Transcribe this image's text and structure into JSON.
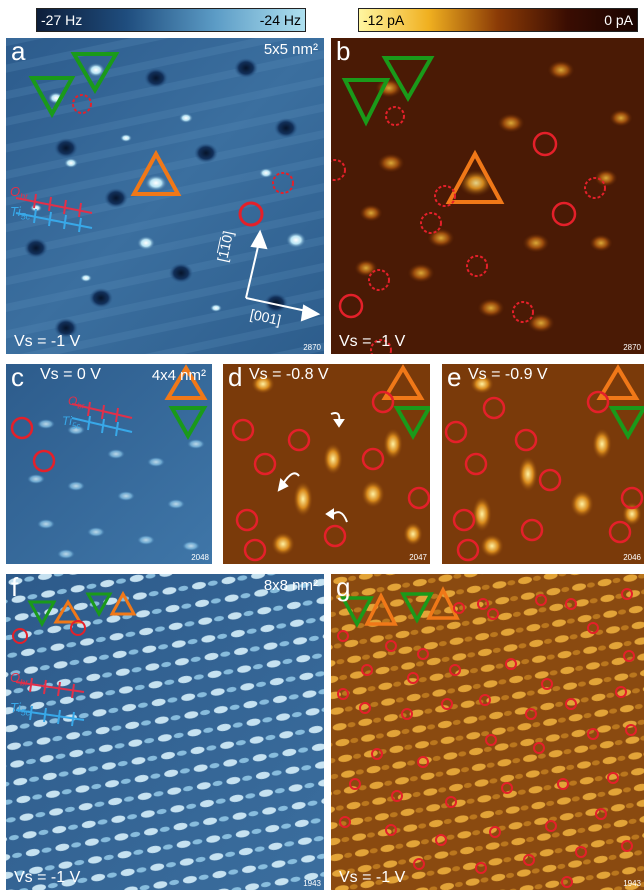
{
  "colorbars": {
    "frequency": {
      "min": "-27 Hz",
      "max": "-24 Hz"
    },
    "current": {
      "min": "-12 pA",
      "max": "0 pA"
    }
  },
  "panels": {
    "a": {
      "label": "a",
      "scale": "5x5 nm²",
      "voltage": "Vs = -1 V",
      "id": "2870",
      "lattice": {
        "o_label": "O",
        "o_sub": "br",
        "ti_label": "Ti",
        "ti_sub": "5c"
      },
      "directions": {
        "d1": "[1̅1̅0]",
        "d2": "[001]"
      }
    },
    "b": {
      "label": "b",
      "voltage": "Vs = -1 V",
      "id": "2870"
    },
    "c": {
      "label": "c",
      "scale": "4x4 nm²",
      "voltage": "Vs = 0 V",
      "id": "2048",
      "lattice": {
        "o_label": "O",
        "o_sub": "br",
        "ti_label": "Ti",
        "ti_sub": "5c"
      }
    },
    "d": {
      "label": "d",
      "voltage": "Vs = -0.8 V",
      "id": "2047"
    },
    "e": {
      "label": "e",
      "voltage": "Vs = -0.9 V",
      "id": "2046"
    },
    "f": {
      "label": "f",
      "scale": "8x8 nm²",
      "voltage": "Vs = -1 V",
      "id": "1943",
      "lattice": {
        "o_label": "O",
        "o_sub": "br",
        "ti_label": "Ti",
        "ti_sub": "5c"
      }
    },
    "g": {
      "label": "g",
      "voltage": "Vs = -1 V",
      "id": "1943"
    }
  },
  "colors": {
    "triangle_green": "#1a9a1a",
    "triangle_orange": "#f07818",
    "marker_red": "#e4202a",
    "lattice_red": "#e0304a",
    "lattice_blue": "#38a8e8"
  }
}
